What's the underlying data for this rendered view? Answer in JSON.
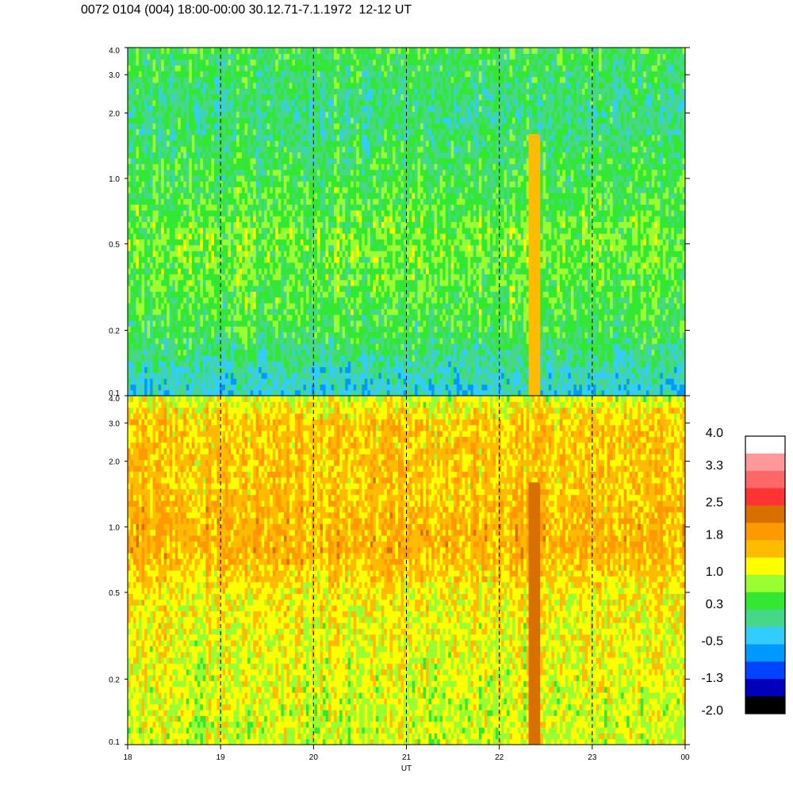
{
  "title": "0072 0104 (004) 18:00-00:00 30.12.71-7.1.1972  12-12 UT",
  "chart_data": [
    {
      "type": "heatmap",
      "panel": "top",
      "x_range": [
        18,
        24
      ],
      "y_range": [
        0.1,
        4.0
      ],
      "y_scale": "log",
      "y_ticks": [
        "4.0",
        "3.0",
        "2.0",
        "1.0",
        "0.5",
        "0.2",
        "0.1"
      ],
      "y_tick_values": [
        4.0,
        3.0,
        2.0,
        1.0,
        0.5,
        0.2,
        0.1
      ],
      "vertical_dashed_lines_at": [
        19,
        20,
        21,
        22,
        23
      ],
      "dominant_level_by_freq": [
        {
          "freq": 4.0,
          "level": 0.3
        },
        {
          "freq": 2.0,
          "level": 0.0
        },
        {
          "freq": 1.0,
          "level": 0.3
        },
        {
          "freq": 0.5,
          "level": 0.6
        },
        {
          "freq": 0.2,
          "level": 0.3
        },
        {
          "freq": 0.1,
          "level": -0.5
        }
      ],
      "events": [
        {
          "time": 22.37,
          "freq_min": 0.1,
          "freq_max": 1.6,
          "level": 1.8
        }
      ]
    },
    {
      "type": "heatmap",
      "panel": "bottom",
      "x_range": [
        18,
        24
      ],
      "y_range": [
        0.1,
        4.0
      ],
      "y_scale": "log",
      "y_ticks": [
        "4.0",
        "3.0",
        "2.0",
        "1.0",
        "0.5",
        "0.2",
        "0.1"
      ],
      "y_tick_values": [
        4.0,
        3.0,
        2.0,
        1.0,
        0.5,
        0.2,
        0.1
      ],
      "vertical_dashed_lines_at": [
        19,
        20,
        21,
        22,
        23
      ],
      "dominant_level_by_freq": [
        {
          "freq": 4.0,
          "level": 1.0
        },
        {
          "freq": 3.0,
          "level": 1.6
        },
        {
          "freq": 1.5,
          "level": 1.6
        },
        {
          "freq": 0.8,
          "level": 1.8
        },
        {
          "freq": 0.5,
          "level": 1.3
        },
        {
          "freq": 0.2,
          "level": 1.1
        },
        {
          "freq": 0.1,
          "level": 1.0
        }
      ],
      "events": [
        {
          "time": 22.37,
          "freq_min": 0.1,
          "freq_max": 1.6,
          "level": 2.5
        }
      ]
    }
  ],
  "x_axis": {
    "label": "UT",
    "ticks": [
      "18",
      "19",
      "20",
      "21",
      "22",
      "23",
      "00"
    ],
    "tick_values": [
      18,
      19,
      20,
      21,
      22,
      23,
      24
    ]
  },
  "colorbar": {
    "labels": [
      "4.0",
      "3.3",
      "2.5",
      "1.8",
      "1.0",
      "0.3",
      "-0.5",
      "-1.3",
      "-2.0"
    ],
    "label_values": [
      4.0,
      3.3,
      2.5,
      1.8,
      1.0,
      0.3,
      -0.5,
      -1.3,
      -2.0
    ],
    "colors_top_to_bottom": [
      "#ffffff",
      "#ff9999",
      "#ff6666",
      "#ff3333",
      "#d87000",
      "#ff9900",
      "#ffbb00",
      "#ffff00",
      "#99ff33",
      "#33e833",
      "#44d888",
      "#33ccff",
      "#0099ff",
      "#0044ff",
      "#0000bb",
      "#000000"
    ]
  }
}
